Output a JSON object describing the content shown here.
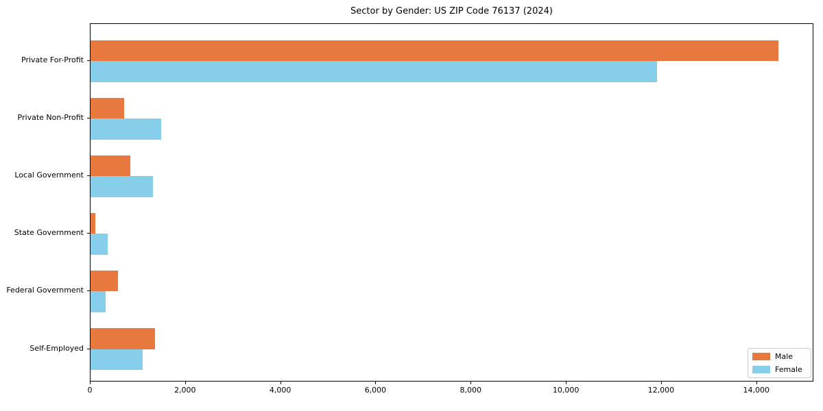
{
  "chart_data": {
    "type": "bar",
    "orientation": "horizontal",
    "title": "Sector by Gender: US ZIP Code 76137 (2024)",
    "categories": [
      "Private For-Profit",
      "Private Non-Profit",
      "Local Government",
      "State Government",
      "Federal Government",
      "Self-Employed"
    ],
    "series": [
      {
        "name": "Male",
        "color": "#e8793e",
        "values": [
          14450,
          710,
          840,
          100,
          570,
          1350
        ]
      },
      {
        "name": "Female",
        "color": "#87ceeb",
        "values": [
          11900,
          1490,
          1310,
          360,
          310,
          1100
        ]
      }
    ],
    "xlabel": "",
    "ylabel": "",
    "xlim": [
      0,
      15200
    ],
    "x_ticks": [
      0,
      2000,
      4000,
      6000,
      8000,
      10000,
      12000,
      14000
    ],
    "x_tick_labels": [
      "0",
      "2,000",
      "4,000",
      "6,000",
      "8,000",
      "10,000",
      "12,000",
      "14,000"
    ],
    "grid": false,
    "legend_position": "lower right",
    "background_color": "#ffffff",
    "spine_color": "#000000"
  }
}
